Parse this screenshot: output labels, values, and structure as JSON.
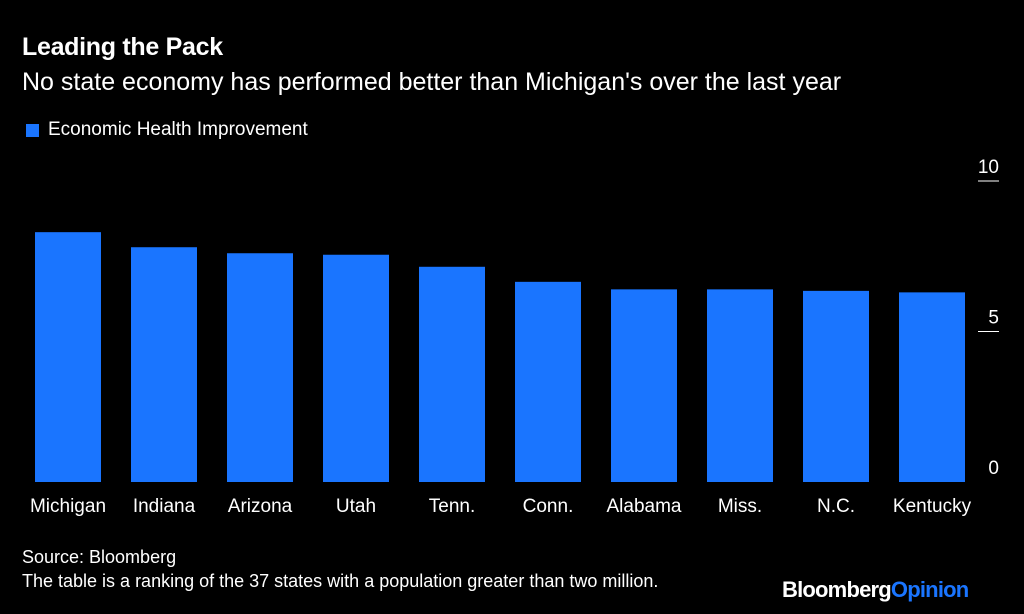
{
  "header": {
    "title": "Leading the Pack",
    "subtitle": "No state economy has performed better than Michigan's over the last year"
  },
  "footer": {
    "source": "Source: Bloomberg",
    "note": "The table is a ranking of the 37 states with a population greater than two million.",
    "brand_part1": "Bloomberg",
    "brand_part2": "Opinion"
  },
  "colors": {
    "background": "#000000",
    "bar": "#1a75ff",
    "text": "#ffffff"
  },
  "chart_data": {
    "type": "bar",
    "title": "Leading the Pack",
    "subtitle": "No state economy has performed better than Michigan's over the last year",
    "categories": [
      "Michigan",
      "Indiana",
      "Arizona",
      "Utah",
      "Tenn.",
      "Conn.",
      "Alabama",
      "Miss.",
      "N.C.",
      "Kentucky"
    ],
    "series": [
      {
        "name": "Economic Health Improvement",
        "values": [
          8.3,
          7.8,
          7.6,
          7.55,
          7.15,
          6.65,
          6.4,
          6.4,
          6.35,
          6.3
        ]
      }
    ],
    "ylim": [
      0,
      10
    ],
    "yticks": [
      "0",
      "5",
      "10"
    ],
    "ytick_values": [
      0,
      5,
      10
    ],
    "y_axis_position": "right",
    "grid": false,
    "legend": "top-left"
  }
}
